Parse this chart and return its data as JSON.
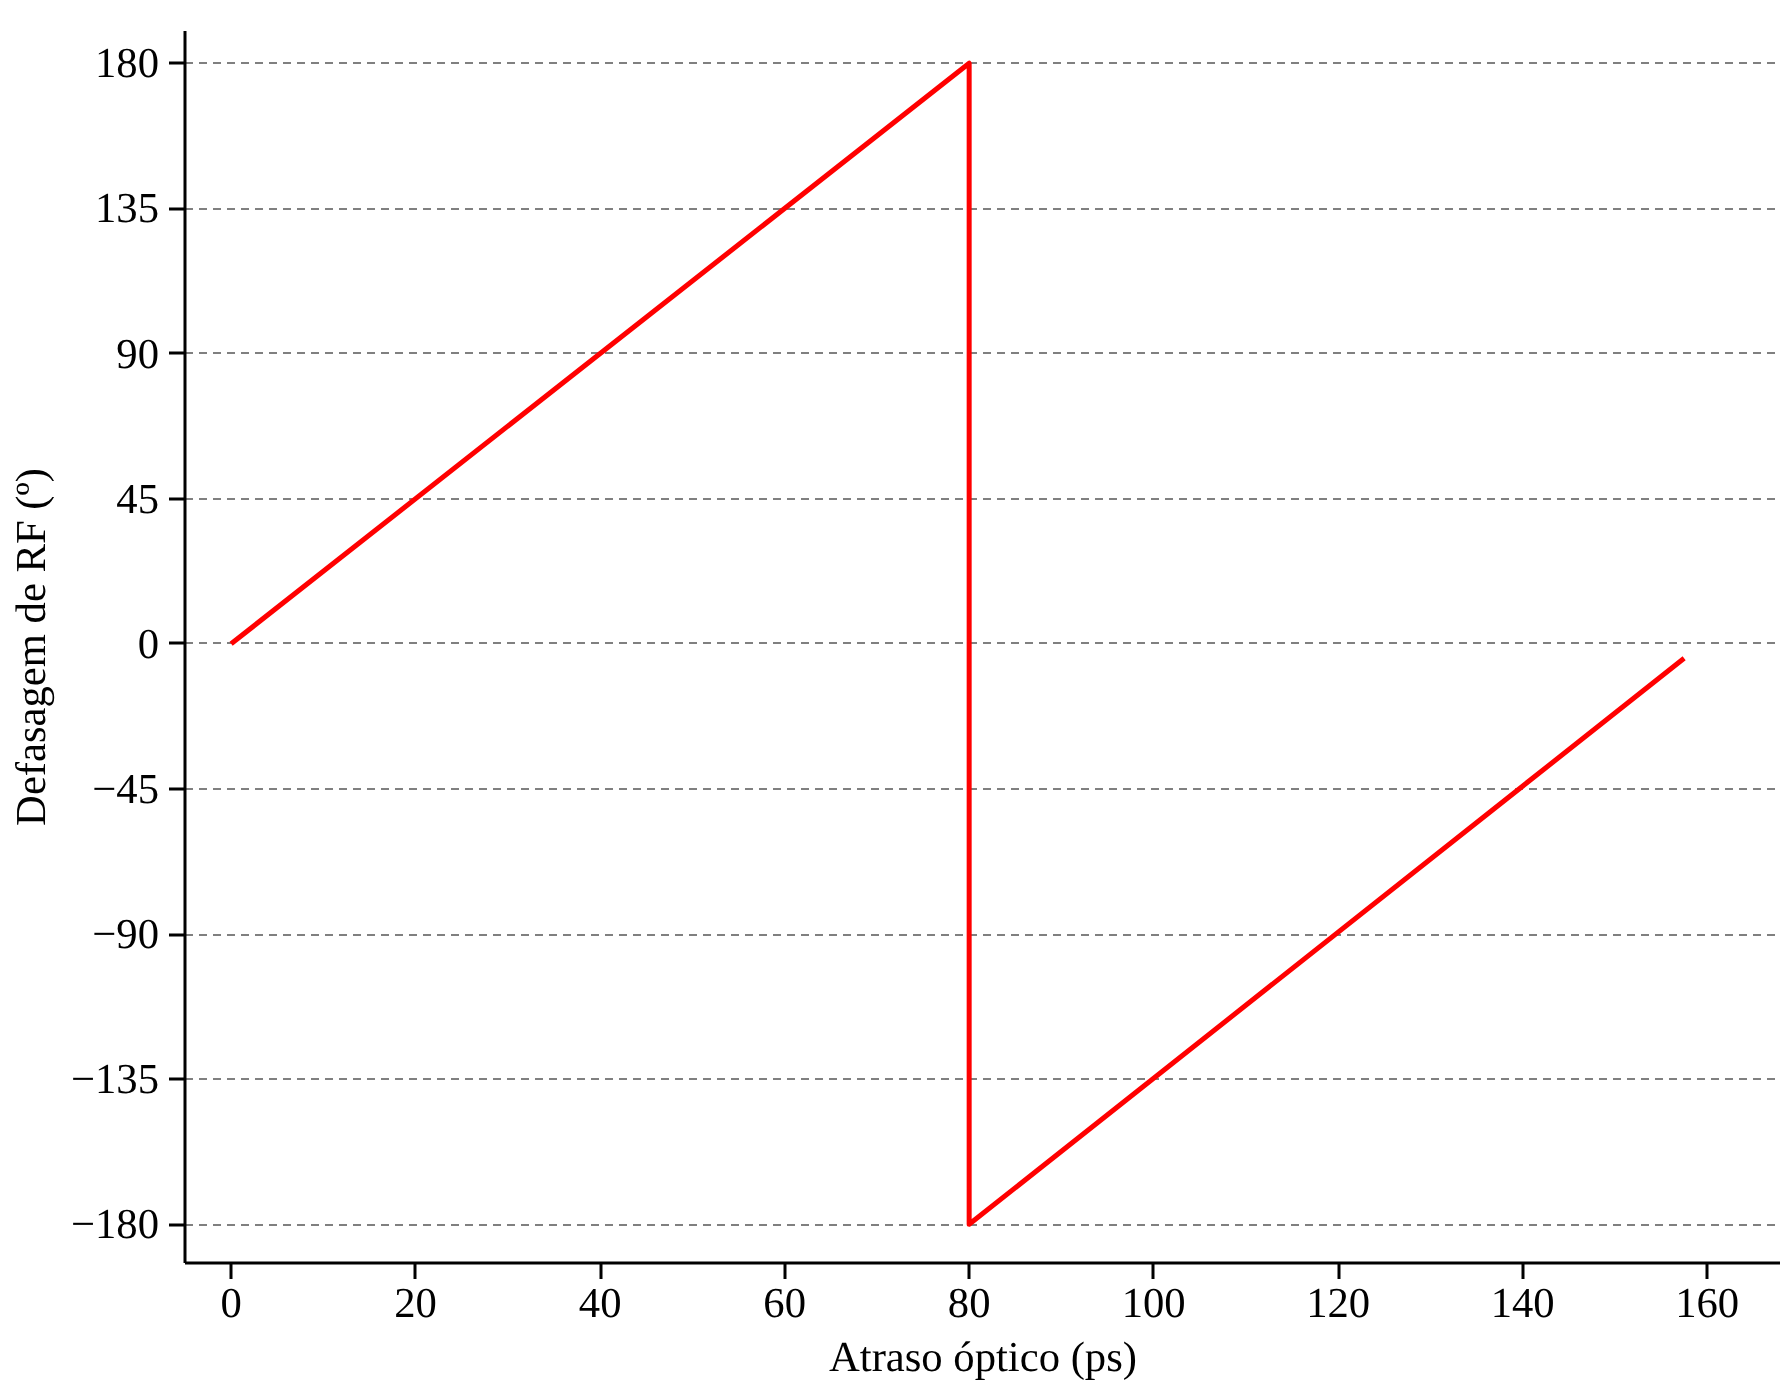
{
  "chart_data": {
    "type": "line",
    "xlabel": "Atraso óptico (ps)",
    "ylabel": "Defasagem de RF (º)",
    "x": [
      0,
      80,
      80,
      157.5
    ],
    "series": [
      {
        "color": "#ff0000",
        "values": [
          0,
          180,
          -180,
          -4.5
        ]
      }
    ],
    "xlim": [
      -5,
      168
    ],
    "ylim": [
      -192,
      190
    ],
    "xticks": [
      0,
      20,
      40,
      60,
      80,
      100,
      120,
      140,
      160
    ],
    "yticks": [
      -180,
      -135,
      -90,
      -45,
      0,
      45,
      90,
      135,
      180
    ],
    "grid": "y",
    "marker": "none",
    "line_style": "solid"
  }
}
